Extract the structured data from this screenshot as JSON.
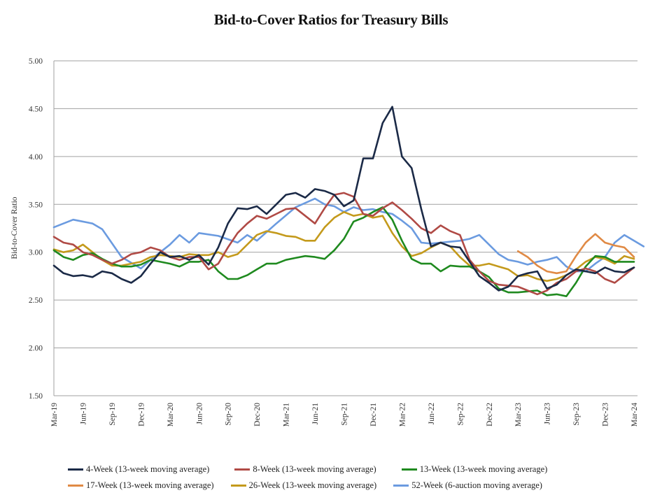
{
  "chart_data": {
    "type": "line",
    "title": "Bid-to-Cover Ratios for Treasury Bills",
    "xlabel": "",
    "ylabel": "Bid-to-Cover Ratio",
    "ylim": [
      1.5,
      5.0
    ],
    "yticks": [
      "1.50",
      "2.00",
      "2.50",
      "3.00",
      "3.50",
      "4.00",
      "4.50",
      "5.00"
    ],
    "ytick_values": [
      1.5,
      2.0,
      2.5,
      3.0,
      3.5,
      4.0,
      4.5,
      5.0
    ],
    "grid": true,
    "legend_position": "bottom",
    "x_tick_labels": [
      "Mar-19",
      "Jun-19",
      "Sep-19",
      "Dec-19",
      "Mar-20",
      "Jun-20",
      "Sep-20",
      "Dec-20",
      "Mar-21",
      "Jun-21",
      "Sep-21",
      "Dec-21",
      "Mar-22",
      "Jun-22",
      "Sep-22",
      "Dec-22",
      "Mar-23",
      "Jun-23",
      "Sep-23",
      "Dec-23",
      "Mar-24"
    ],
    "x_unit": "months since Mar-19",
    "x_range": [
      0,
      60
    ],
    "series": [
      {
        "name": "4-Week (13-week moving average)",
        "color": "#1b2a47",
        "points": [
          [
            0,
            2.86
          ],
          [
            1,
            2.78
          ],
          [
            2,
            2.75
          ],
          [
            3,
            2.76
          ],
          [
            4,
            2.74
          ],
          [
            5,
            2.8
          ],
          [
            6,
            2.78
          ],
          [
            7,
            2.72
          ],
          [
            8,
            2.68
          ],
          [
            9,
            2.75
          ],
          [
            10,
            2.88
          ],
          [
            11,
            3.0
          ],
          [
            12,
            2.95
          ],
          [
            13,
            2.96
          ],
          [
            14,
            2.92
          ],
          [
            15,
            2.97
          ],
          [
            16,
            2.87
          ],
          [
            17,
            3.05
          ],
          [
            18,
            3.3
          ],
          [
            19,
            3.46
          ],
          [
            20,
            3.45
          ],
          [
            21,
            3.48
          ],
          [
            22,
            3.4
          ],
          [
            23,
            3.5
          ],
          [
            24,
            3.6
          ],
          [
            25,
            3.62
          ],
          [
            26,
            3.57
          ],
          [
            27,
            3.66
          ],
          [
            28,
            3.64
          ],
          [
            29,
            3.6
          ],
          [
            30,
            3.48
          ],
          [
            31,
            3.54
          ],
          [
            32,
            3.98
          ],
          [
            33,
            3.98
          ],
          [
            34,
            4.35
          ],
          [
            35,
            4.52
          ],
          [
            36,
            4.0
          ],
          [
            37,
            3.88
          ],
          [
            38,
            3.45
          ],
          [
            39,
            3.06
          ],
          [
            40,
            3.1
          ],
          [
            41,
            3.06
          ],
          [
            42,
            3.05
          ],
          [
            43,
            2.9
          ],
          [
            44,
            2.75
          ],
          [
            45,
            2.68
          ],
          [
            46,
            2.6
          ],
          [
            47,
            2.64
          ],
          [
            48,
            2.75
          ],
          [
            49,
            2.78
          ],
          [
            50,
            2.8
          ],
          [
            51,
            2.62
          ],
          [
            52,
            2.66
          ],
          [
            53,
            2.76
          ],
          [
            54,
            2.82
          ],
          [
            55,
            2.8
          ],
          [
            56,
            2.78
          ],
          [
            57,
            2.84
          ],
          [
            58,
            2.8
          ],
          [
            59,
            2.79
          ],
          [
            60,
            2.84
          ]
        ]
      },
      {
        "name": "8-Week (13-week moving average)",
        "color": "#b04a45",
        "points": [
          [
            0,
            3.16
          ],
          [
            1,
            3.1
          ],
          [
            2,
            3.08
          ],
          [
            3,
            3.0
          ],
          [
            4,
            2.97
          ],
          [
            5,
            2.92
          ],
          [
            6,
            2.88
          ],
          [
            7,
            2.92
          ],
          [
            8,
            2.98
          ],
          [
            9,
            3.0
          ],
          [
            10,
            3.05
          ],
          [
            11,
            3.02
          ],
          [
            12,
            2.95
          ],
          [
            13,
            2.92
          ],
          [
            14,
            2.95
          ],
          [
            15,
            2.95
          ],
          [
            16,
            2.82
          ],
          [
            17,
            2.88
          ],
          [
            18,
            3.05
          ],
          [
            19,
            3.2
          ],
          [
            20,
            3.3
          ],
          [
            21,
            3.38
          ],
          [
            22,
            3.35
          ],
          [
            23,
            3.4
          ],
          [
            24,
            3.45
          ],
          [
            25,
            3.46
          ],
          [
            26,
            3.38
          ],
          [
            27,
            3.3
          ],
          [
            28,
            3.46
          ],
          [
            29,
            3.6
          ],
          [
            30,
            3.62
          ],
          [
            31,
            3.58
          ],
          [
            32,
            3.4
          ],
          [
            33,
            3.38
          ],
          [
            34,
            3.46
          ],
          [
            35,
            3.52
          ],
          [
            36,
            3.44
          ],
          [
            37,
            3.35
          ],
          [
            38,
            3.25
          ],
          [
            39,
            3.2
          ],
          [
            40,
            3.28
          ],
          [
            41,
            3.22
          ],
          [
            42,
            3.18
          ],
          [
            43,
            2.92
          ],
          [
            44,
            2.8
          ],
          [
            45,
            2.7
          ],
          [
            46,
            2.66
          ],
          [
            47,
            2.65
          ],
          [
            48,
            2.64
          ],
          [
            49,
            2.6
          ],
          [
            50,
            2.56
          ],
          [
            51,
            2.6
          ],
          [
            52,
            2.68
          ],
          [
            53,
            2.72
          ],
          [
            54,
            2.8
          ],
          [
            55,
            2.83
          ],
          [
            56,
            2.8
          ],
          [
            57,
            2.72
          ],
          [
            58,
            2.68
          ],
          [
            59,
            2.76
          ],
          [
            60,
            2.84
          ]
        ]
      },
      {
        "name": "13-Week (13-week moving average)",
        "color": "#1f8a1f",
        "points": [
          [
            0,
            3.02
          ],
          [
            1,
            2.95
          ],
          [
            2,
            2.92
          ],
          [
            3,
            2.97
          ],
          [
            4,
            2.99
          ],
          [
            5,
            2.93
          ],
          [
            6,
            2.88
          ],
          [
            7,
            2.85
          ],
          [
            8,
            2.85
          ],
          [
            9,
            2.87
          ],
          [
            10,
            2.92
          ],
          [
            11,
            2.9
          ],
          [
            12,
            2.88
          ],
          [
            13,
            2.85
          ],
          [
            14,
            2.9
          ],
          [
            15,
            2.9
          ],
          [
            16,
            2.92
          ],
          [
            17,
            2.8
          ],
          [
            18,
            2.72
          ],
          [
            19,
            2.72
          ],
          [
            20,
            2.76
          ],
          [
            21,
            2.82
          ],
          [
            22,
            2.88
          ],
          [
            23,
            2.88
          ],
          [
            24,
            2.92
          ],
          [
            25,
            2.94
          ],
          [
            26,
            2.96
          ],
          [
            27,
            2.95
          ],
          [
            28,
            2.93
          ],
          [
            29,
            3.02
          ],
          [
            30,
            3.14
          ],
          [
            31,
            3.32
          ],
          [
            32,
            3.36
          ],
          [
            33,
            3.42
          ],
          [
            34,
            3.47
          ],
          [
            35,
            3.34
          ],
          [
            36,
            3.12
          ],
          [
            37,
            2.93
          ],
          [
            38,
            2.88
          ],
          [
            39,
            2.88
          ],
          [
            40,
            2.8
          ],
          [
            41,
            2.86
          ],
          [
            42,
            2.85
          ],
          [
            43,
            2.85
          ],
          [
            44,
            2.8
          ],
          [
            45,
            2.74
          ],
          [
            46,
            2.62
          ],
          [
            47,
            2.58
          ],
          [
            48,
            2.58
          ],
          [
            49,
            2.59
          ],
          [
            50,
            2.6
          ],
          [
            51,
            2.55
          ],
          [
            52,
            2.56
          ],
          [
            53,
            2.54
          ],
          [
            54,
            2.68
          ],
          [
            55,
            2.85
          ],
          [
            56,
            2.96
          ],
          [
            57,
            2.95
          ],
          [
            58,
            2.9
          ],
          [
            59,
            2.9
          ],
          [
            60,
            2.9
          ]
        ]
      },
      {
        "name": "17-Week (13-week moving average)",
        "color": "#e08a45",
        "points": [
          [
            48,
            3.01
          ],
          [
            49,
            2.95
          ],
          [
            50,
            2.86
          ],
          [
            51,
            2.8
          ],
          [
            52,
            2.78
          ],
          [
            53,
            2.8
          ],
          [
            54,
            2.96
          ],
          [
            55,
            3.1
          ],
          [
            56,
            3.19
          ],
          [
            57,
            3.1
          ],
          [
            58,
            3.07
          ],
          [
            59,
            3.05
          ],
          [
            60,
            2.95
          ]
        ]
      },
      {
        "name": "26-Week (13-week moving average)",
        "color": "#c49a1c",
        "points": [
          [
            0,
            3.03
          ],
          [
            1,
            3.0
          ],
          [
            2,
            3.02
          ],
          [
            3,
            3.08
          ],
          [
            4,
            3.0
          ],
          [
            5,
            2.92
          ],
          [
            6,
            2.86
          ],
          [
            7,
            2.86
          ],
          [
            8,
            2.88
          ],
          [
            9,
            2.9
          ],
          [
            10,
            2.95
          ],
          [
            11,
            2.97
          ],
          [
            12,
            2.96
          ],
          [
            13,
            2.95
          ],
          [
            14,
            2.98
          ],
          [
            15,
            2.97
          ],
          [
            16,
            2.97
          ],
          [
            17,
            3.0
          ],
          [
            18,
            2.95
          ],
          [
            19,
            2.98
          ],
          [
            20,
            3.08
          ],
          [
            21,
            3.18
          ],
          [
            22,
            3.22
          ],
          [
            23,
            3.2
          ],
          [
            24,
            3.17
          ],
          [
            25,
            3.16
          ],
          [
            26,
            3.12
          ],
          [
            27,
            3.12
          ],
          [
            28,
            3.26
          ],
          [
            29,
            3.36
          ],
          [
            30,
            3.42
          ],
          [
            31,
            3.38
          ],
          [
            32,
            3.4
          ],
          [
            33,
            3.36
          ],
          [
            34,
            3.38
          ],
          [
            35,
            3.2
          ],
          [
            36,
            3.06
          ],
          [
            37,
            2.96
          ],
          [
            38,
            2.99
          ],
          [
            39,
            3.05
          ],
          [
            40,
            3.1
          ],
          [
            41,
            3.06
          ],
          [
            42,
            2.95
          ],
          [
            43,
            2.86
          ],
          [
            44,
            2.86
          ],
          [
            45,
            2.88
          ],
          [
            46,
            2.85
          ],
          [
            47,
            2.82
          ],
          [
            48,
            2.75
          ],
          [
            49,
            2.76
          ],
          [
            50,
            2.72
          ],
          [
            51,
            2.7
          ],
          [
            52,
            2.72
          ],
          [
            53,
            2.76
          ],
          [
            54,
            2.82
          ],
          [
            55,
            2.9
          ],
          [
            56,
            2.95
          ],
          [
            57,
            2.93
          ],
          [
            58,
            2.88
          ],
          [
            59,
            2.96
          ],
          [
            60,
            2.93
          ]
        ]
      },
      {
        "name": "52-Week (6-auction moving average)",
        "color": "#6b9be0",
        "points": [
          [
            0,
            3.26
          ],
          [
            2,
            3.34
          ],
          [
            4,
            3.3
          ],
          [
            5,
            3.24
          ],
          [
            7,
            2.95
          ],
          [
            9,
            2.83
          ],
          [
            10,
            2.92
          ],
          [
            12,
            3.08
          ],
          [
            13,
            3.18
          ],
          [
            14,
            3.1
          ],
          [
            15,
            3.2
          ],
          [
            17,
            3.17
          ],
          [
            19,
            3.1
          ],
          [
            20,
            3.18
          ],
          [
            21,
            3.12
          ],
          [
            23,
            3.3
          ],
          [
            25,
            3.47
          ],
          [
            27,
            3.56
          ],
          [
            28,
            3.5
          ],
          [
            29,
            3.48
          ],
          [
            30,
            3.42
          ],
          [
            31,
            3.47
          ],
          [
            32,
            3.44
          ],
          [
            33,
            3.45
          ],
          [
            34,
            3.42
          ],
          [
            35,
            3.4
          ],
          [
            36,
            3.33
          ],
          [
            37,
            3.25
          ],
          [
            38,
            3.1
          ],
          [
            39,
            3.09
          ],
          [
            40,
            3.1
          ],
          [
            41,
            3.11
          ],
          [
            42,
            3.12
          ],
          [
            43,
            3.14
          ],
          [
            44,
            3.18
          ],
          [
            45,
            3.08
          ],
          [
            46,
            2.98
          ],
          [
            47,
            2.92
          ],
          [
            48,
            2.9
          ],
          [
            49,
            2.87
          ],
          [
            50,
            2.9
          ],
          [
            51,
            2.92
          ],
          [
            52,
            2.95
          ],
          [
            53,
            2.85
          ],
          [
            54,
            2.8
          ],
          [
            55,
            2.8
          ],
          [
            56,
            2.88
          ],
          [
            57,
            2.95
          ],
          [
            58,
            3.1
          ],
          [
            59,
            3.18
          ],
          [
            60,
            3.12
          ],
          [
            61,
            3.06
          ]
        ]
      }
    ]
  }
}
